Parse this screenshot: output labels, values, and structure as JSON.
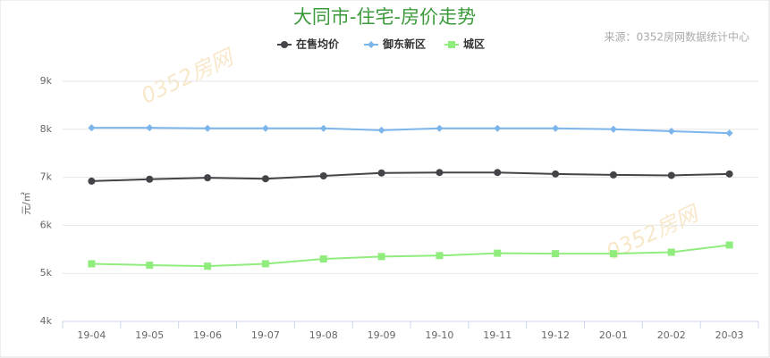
{
  "chart_data": {
    "type": "line",
    "title": "大同市-住宅-房价走势",
    "source": "来源：0352房网数据统计中心",
    "watermark": "0352房网",
    "y_label": "元/㎡",
    "categories": [
      "19-04",
      "19-05",
      "19-06",
      "19-07",
      "19-08",
      "19-09",
      "19-10",
      "19-11",
      "19-12",
      "20-01",
      "20-02",
      "20-03"
    ],
    "series": [
      {
        "name": "在售均价",
        "color": "#434348",
        "marker": "circle",
        "values": [
          6920,
          6960,
          6990,
          6970,
          7030,
          7090,
          7100,
          7100,
          7070,
          7050,
          7040,
          7070
        ]
      },
      {
        "name": "御东新区",
        "color": "#7cb5ec",
        "marker": "diamond",
        "values": [
          8030,
          8030,
          8020,
          8020,
          8020,
          7980,
          8020,
          8020,
          8020,
          8000,
          7960,
          7920
        ]
      },
      {
        "name": "城区",
        "color": "#90ed7d",
        "marker": "square",
        "values": [
          5200,
          5170,
          5150,
          5200,
          5300,
          5350,
          5370,
          5420,
          5410,
          5410,
          5440,
          5590
        ]
      }
    ],
    "ylim": [
      4000,
      9000
    ],
    "yticks": [
      {
        "value": 4000,
        "label": "4k"
      },
      {
        "value": 5000,
        "label": "5k"
      },
      {
        "value": 6000,
        "label": "6k"
      },
      {
        "value": 7000,
        "label": "7k"
      },
      {
        "value": 8000,
        "label": "8k"
      },
      {
        "value": 9000,
        "label": "9k"
      }
    ],
    "grid": true
  }
}
